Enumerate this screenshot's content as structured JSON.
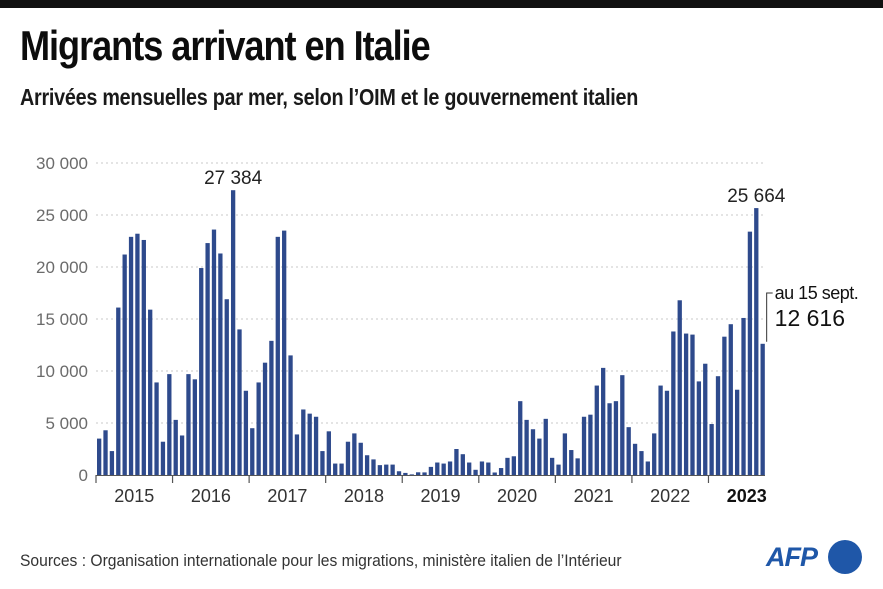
{
  "header": {
    "title": "Migrants arrivant en Italie",
    "subtitle": "Arrivées mensuelles par mer, selon l’OIM et le gouvernement italien"
  },
  "footer": {
    "source": "Sources : Organisation internationale pour les migrations, ministère italien de l’Intérieur",
    "logo": "AFP"
  },
  "colors": {
    "bar": "#2e4a8c",
    "grid": "#c8c8c8",
    "axis_text": "#6b6b6b",
    "logo": "#1f57a8"
  },
  "chart_data": {
    "type": "bar",
    "title": "Migrants arrivant en Italie",
    "subtitle": "Arrivées mensuelles par mer, selon l’OIM et le gouvernement italien",
    "xlabel": "",
    "ylabel": "",
    "ylim": [
      0,
      30000
    ],
    "yticks": [
      0,
      5000,
      10000,
      15000,
      20000,
      25000,
      30000
    ],
    "ytick_labels": [
      "0",
      "5 000",
      "10 000",
      "15 000",
      "20 000",
      "25 000",
      "30 000"
    ],
    "grid": "horizontal dotted",
    "years": [
      "2015",
      "2016",
      "2017",
      "2018",
      "2019",
      "2020",
      "2021",
      "2022",
      "2023"
    ],
    "bold_year": "2023",
    "frequency": "monthly",
    "start": "2015-01",
    "end": "2023-09",
    "series": [
      {
        "name": "Arrivées mensuelles par mer",
        "values": [
          3500,
          4300,
          2300,
          16100,
          21200,
          22900,
          23200,
          22600,
          15900,
          8900,
          3200,
          9700,
          5300,
          3800,
          9700,
          9200,
          19900,
          22300,
          23600,
          21300,
          16900,
          27384,
          14000,
          8100,
          4500,
          8900,
          10800,
          12900,
          22900,
          23500,
          11500,
          3900,
          6300,
          5900,
          5600,
          2300,
          4200,
          1100,
          1100,
          3200,
          4000,
          3100,
          1900,
          1500,
          950,
          1000,
          1000,
          360,
          200,
          60,
          260,
          250,
          780,
          1200,
          1100,
          1300,
          2500,
          2000,
          1200,
          500,
          1300,
          1200,
          240,
          670,
          1650,
          1800,
          7100,
          5300,
          4400,
          3500,
          5400,
          1650,
          1000,
          4000,
          2400,
          1600,
          5600,
          5800,
          8600,
          10300,
          6900,
          7100,
          9600,
          4600,
          3000,
          2300,
          1300,
          4000,
          8600,
          8100,
          13800,
          16800,
          13600,
          13500,
          9000,
          10700,
          4900,
          9500,
          13300,
          14500,
          8200,
          15100,
          23400,
          25664,
          12616
        ]
      }
    ],
    "annotations": [
      {
        "label": "27 384",
        "month": "2016-10",
        "value": 27384
      },
      {
        "label": "25 664",
        "month": "2023-08",
        "value": 25664
      },
      {
        "label": "au 15 sept.",
        "value_label": "12 616",
        "month": "2023-09",
        "value": 12616
      }
    ]
  }
}
